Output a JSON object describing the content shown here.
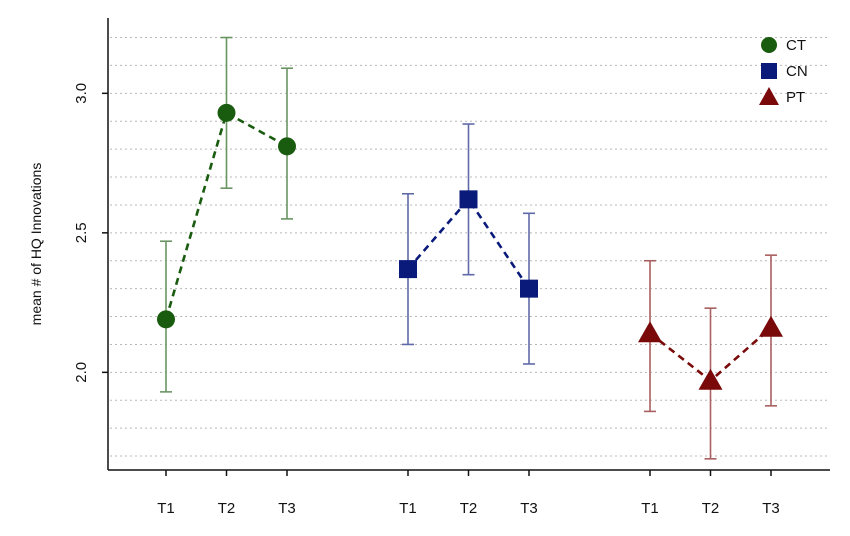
{
  "chart_data": {
    "type": "scatter",
    "title": "",
    "xlabel": "",
    "ylabel": "mean # of HQ Innovations",
    "ylim": [
      1.65,
      3.27
    ],
    "yticks": [
      "2.0",
      "2.5",
      "3.0"
    ],
    "grid": "horizontal dotted",
    "legend_position": "top-right",
    "groups": [
      {
        "name": "CT",
        "color": "#1a5c0f",
        "marker": "circle",
        "x": [
          "T1",
          "T2",
          "T3"
        ],
        "y": [
          2.19,
          2.93,
          2.81
        ],
        "ci_low": [
          1.93,
          2.66,
          2.55
        ],
        "ci_high": [
          2.47,
          3.2,
          3.09
        ]
      },
      {
        "name": "CN",
        "color": "#0a1a7a",
        "marker": "square",
        "x": [
          "T1",
          "T2",
          "T3"
        ],
        "y": [
          2.37,
          2.62,
          2.3
        ],
        "ci_low": [
          2.1,
          2.35,
          2.03
        ],
        "ci_high": [
          2.64,
          2.89,
          2.57
        ]
      },
      {
        "name": "PT",
        "color": "#7a0a0a",
        "marker": "triangle",
        "x": [
          "T1",
          "T2",
          "T3"
        ],
        "y": [
          2.14,
          1.97,
          2.16
        ],
        "ci_low": [
          1.86,
          1.69,
          1.88
        ],
        "ci_high": [
          2.4,
          2.23,
          2.42
        ]
      }
    ]
  }
}
